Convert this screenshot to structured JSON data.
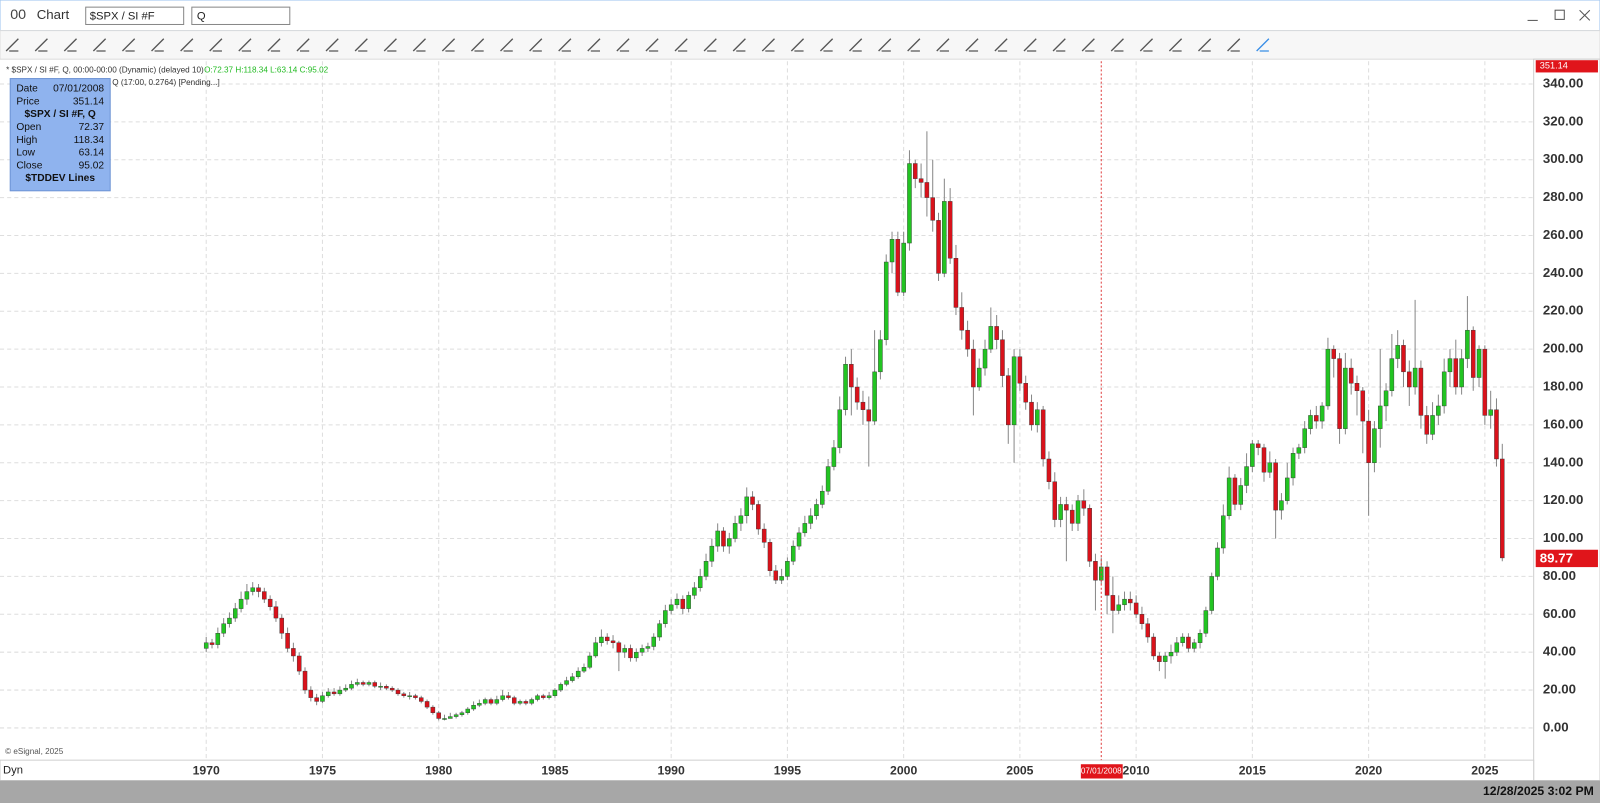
{
  "window": {
    "title": "Chart",
    "symbol": "$SPX / SI #F",
    "search": "Q"
  },
  "chart_data": {
    "type": "candlestick",
    "legend_line": "* $SPX / SI #F, Q, 00:00-00:00 (Dynamic) (delayed 10)",
    "ohlc_line": "O:72.37 H:118.34 L:63.14 C:95.02",
    "study_line": "Q (17:00, 0.2764) [Pending...]",
    "up_color": "#22c422",
    "down_color": "#d9121b",
    "grid": true,
    "x": [
      1970,
      1970.25,
      1970.5,
      1970.75,
      1971,
      1971.25,
      1971.5,
      1971.75,
      1972,
      1972.25,
      1972.5,
      1972.75,
      1973,
      1973.25,
      1973.5,
      1973.75,
      1974,
      1974.25,
      1974.5,
      1974.75,
      1975,
      1975.25,
      1975.5,
      1975.75,
      1976,
      1976.25,
      1976.5,
      1976.75,
      1977,
      1977.25,
      1977.5,
      1977.75,
      1978,
      1978.25,
      1978.5,
      1978.75,
      1979,
      1979.25,
      1979.5,
      1979.75,
      1980,
      1980.25,
      1980.5,
      1980.75,
      1981,
      1981.25,
      1981.5,
      1981.75,
      1982,
      1982.25,
      1982.5,
      1982.75,
      1983,
      1983.25,
      1983.5,
      1983.75,
      1984,
      1984.25,
      1984.5,
      1984.75,
      1985,
      1985.25,
      1985.5,
      1985.75,
      1986,
      1986.25,
      1986.5,
      1986.75,
      1987,
      1987.25,
      1987.5,
      1987.75,
      1988,
      1988.25,
      1988.5,
      1988.75,
      1989,
      1989.25,
      1989.5,
      1989.75,
      1990,
      1990.25,
      1990.5,
      1990.75,
      1991,
      1991.25,
      1991.5,
      1991.75,
      1992,
      1992.25,
      1992.5,
      1992.75,
      1993,
      1993.25,
      1993.5,
      1993.75,
      1994,
      1994.25,
      1994.5,
      1994.75,
      1995,
      1995.25,
      1995.5,
      1995.75,
      1996,
      1996.25,
      1996.5,
      1996.75,
      1997,
      1997.25,
      1997.5,
      1997.75,
      1998,
      1998.25,
      1998.5,
      1998.75,
      1999,
      1999.25,
      1999.5,
      1999.75,
      2000,
      2000.25,
      2000.5,
      2000.75,
      2001,
      2001.25,
      2001.5,
      2001.75,
      2002,
      2002.25,
      2002.5,
      2002.75,
      2003,
      2003.25,
      2003.5,
      2003.75,
      2004,
      2004.25,
      2004.5,
      2004.75,
      2005,
      2005.25,
      2005.5,
      2005.75,
      2006,
      2006.25,
      2006.5,
      2006.75,
      2007,
      2007.25,
      2007.5,
      2007.75,
      2008,
      2008.25,
      2008.5,
      2008.75,
      2009,
      2009.25,
      2009.5,
      2009.75,
      2010,
      2010.25,
      2010.5,
      2010.75,
      2011,
      2011.25,
      2011.5,
      2011.75,
      2012,
      2012.25,
      2012.5,
      2012.75,
      2013,
      2013.25,
      2013.5,
      2013.75,
      2014,
      2014.25,
      2014.5,
      2014.75,
      2015,
      2015.25,
      2015.5,
      2015.75,
      2016,
      2016.25,
      2016.5,
      2016.75,
      2017,
      2017.25,
      2017.5,
      2017.75,
      2018,
      2018.25,
      2018.5,
      2018.75,
      2019,
      2019.25,
      2019.5,
      2019.75,
      2020,
      2020.25,
      2020.5,
      2020.75,
      2021,
      2021.25,
      2021.5,
      2021.75,
      2022,
      2022.25,
      2022.5,
      2022.75,
      2023,
      2023.25,
      2023.5,
      2023.75,
      2024,
      2024.25,
      2024.5,
      2024.75,
      2025,
      2025.25,
      2025.5,
      2025.75
    ],
    "open": [
      42,
      45,
      44,
      50,
      55,
      58,
      63,
      68,
      72,
      74,
      72,
      68,
      64,
      58,
      50,
      42,
      38,
      30,
      20,
      16,
      14,
      17,
      19,
      18,
      20,
      21,
      23,
      24,
      23,
      24,
      22,
      22,
      21,
      20,
      18,
      17,
      17,
      16,
      14,
      11,
      8,
      5,
      5,
      6,
      7,
      8,
      10,
      12,
      13,
      15,
      13,
      15,
      17,
      16,
      13,
      14,
      13,
      15,
      17,
      16,
      17,
      20,
      23,
      25,
      27,
      30,
      32,
      38,
      45,
      48,
      46,
      45,
      40,
      42,
      37,
      40,
      42,
      43,
      48,
      55,
      62,
      65,
      68,
      63,
      70,
      74,
      80,
      88,
      96,
      104,
      96,
      100,
      108,
      112,
      122,
      118,
      105,
      98,
      83,
      78,
      80,
      88,
      96,
      103,
      108,
      112,
      118,
      125,
      138,
      148,
      168,
      192,
      180,
      172,
      168,
      162,
      188,
      205,
      246,
      258,
      230,
      256,
      298,
      290,
      288,
      280,
      268,
      240,
      278,
      248,
      222,
      210,
      200,
      180,
      190,
      200,
      212,
      205,
      186,
      160,
      196,
      182,
      172,
      160,
      168,
      142,
      130,
      110,
      118,
      115,
      108,
      120,
      116,
      88,
      78,
      85,
      70,
      62,
      65,
      68,
      66,
      60,
      55,
      48,
      38,
      35,
      38,
      40,
      45,
      48,
      42,
      45,
      50,
      62,
      80,
      95,
      112,
      132,
      118,
      128,
      138,
      150,
      148,
      135,
      140,
      115,
      120,
      132,
      145,
      148,
      158,
      165,
      162,
      170,
      200,
      195,
      158,
      190,
      182,
      178,
      162,
      140,
      158,
      170,
      178,
      195,
      202,
      188,
      180,
      190,
      165,
      155,
      165,
      170,
      188,
      195,
      180,
      195,
      210,
      185,
      200,
      165,
      168,
      142
    ],
    "high": [
      48,
      47,
      53,
      58,
      61,
      66,
      72,
      76,
      77,
      76,
      74,
      70,
      67,
      60,
      53,
      45,
      40,
      32,
      22,
      18,
      19,
      21,
      21,
      22,
      23,
      25,
      26,
      25,
      25,
      25,
      24,
      23,
      22,
      21,
      19,
      19,
      18,
      17,
      15,
      12,
      9,
      7,
      8,
      8,
      9,
      11,
      14,
      15,
      16,
      16,
      17,
      20,
      19,
      17,
      15,
      15,
      16,
      18,
      18,
      19,
      21,
      24,
      27,
      29,
      32,
      34,
      40,
      48,
      52,
      50,
      49,
      46,
      44,
      44,
      42,
      44,
      45,
      50,
      57,
      65,
      68,
      71,
      70,
      72,
      77,
      84,
      92,
      100,
      108,
      106,
      103,
      112,
      116,
      127,
      125,
      120,
      108,
      100,
      86,
      84,
      90,
      99,
      106,
      112,
      116,
      121,
      128,
      142,
      152,
      175,
      196,
      200,
      185,
      178,
      175,
      210,
      210,
      250,
      262,
      262,
      262,
      305,
      300,
      298,
      315,
      300,
      272,
      290,
      285,
      255,
      230,
      215,
      205,
      195,
      205,
      222,
      218,
      210,
      190,
      200,
      200,
      186,
      176,
      172,
      170,
      146,
      135,
      122,
      122,
      118,
      123,
      126,
      118,
      92,
      90,
      88,
      80,
      70,
      72,
      72,
      70,
      64,
      58,
      50,
      40,
      40,
      44,
      48,
      50,
      50,
      47,
      52,
      64,
      82,
      98,
      118,
      138,
      134,
      132,
      145,
      152,
      152,
      150,
      146,
      142,
      124,
      140,
      148,
      150,
      162,
      168,
      170,
      172,
      206,
      202,
      198,
      198,
      195,
      186,
      180,
      168,
      162,
      200,
      182,
      208,
      210,
      205,
      194,
      226,
      194,
      170,
      172,
      176,
      195,
      200,
      205,
      200,
      228,
      212,
      202,
      202,
      178,
      174,
      150
    ],
    "low": [
      40,
      42,
      42,
      48,
      53,
      56,
      61,
      65,
      70,
      69,
      66,
      62,
      56,
      47,
      40,
      35,
      28,
      18,
      14,
      12,
      13,
      16,
      17,
      17,
      19,
      20,
      22,
      22,
      22,
      21,
      20,
      20,
      19,
      17,
      16,
      15,
      15,
      13,
      10,
      7,
      4,
      4,
      5,
      5,
      6,
      7,
      9,
      11,
      12,
      12,
      12,
      14,
      15,
      12,
      12,
      12,
      12,
      14,
      15,
      15,
      16,
      19,
      22,
      24,
      26,
      29,
      31,
      37,
      43,
      44,
      42,
      30,
      37,
      35,
      35,
      38,
      40,
      41,
      46,
      53,
      60,
      63,
      60,
      61,
      68,
      72,
      78,
      85,
      93,
      93,
      92,
      98,
      104,
      108,
      115,
      102,
      95,
      80,
      76,
      76,
      78,
      86,
      94,
      101,
      105,
      110,
      116,
      123,
      136,
      145,
      165,
      165,
      168,
      160,
      138,
      160,
      184,
      202,
      240,
      228,
      228,
      252,
      285,
      280,
      270,
      262,
      236,
      238,
      245,
      218,
      205,
      196,
      165,
      178,
      186,
      198,
      200,
      180,
      150,
      140,
      178,
      168,
      157,
      156,
      138,
      126,
      106,
      106,
      88,
      104,
      104,
      112,
      85,
      62,
      76,
      60,
      50,
      60,
      62,
      62,
      58,
      52,
      45,
      36,
      30,
      26,
      34,
      38,
      43,
      40,
      40,
      42,
      48,
      60,
      78,
      92,
      110,
      115,
      115,
      124,
      135,
      144,
      130,
      132,
      100,
      110,
      118,
      128,
      142,
      145,
      155,
      158,
      158,
      168,
      185,
      150,
      155,
      176,
      165,
      145,
      112,
      135,
      148,
      162,
      175,
      190,
      180,
      170,
      176,
      158,
      150,
      152,
      160,
      166,
      180,
      176,
      176,
      190,
      178,
      180,
      160,
      158,
      138,
      88
    ],
    "close": [
      45,
      44,
      50,
      55,
      58,
      63,
      68,
      72,
      74,
      72,
      68,
      64,
      58,
      50,
      42,
      38,
      30,
      20,
      16,
      14,
      17,
      19,
      18,
      20,
      21,
      23,
      24,
      23,
      24,
      22,
      22,
      21,
      20,
      18,
      17,
      17,
      16,
      14,
      11,
      8,
      5,
      5,
      6,
      7,
      8,
      10,
      12,
      13,
      15,
      13,
      15,
      17,
      16,
      13,
      14,
      13,
      15,
      17,
      16,
      17,
      20,
      23,
      25,
      27,
      30,
      32,
      38,
      45,
      48,
      46,
      45,
      40,
      42,
      37,
      40,
      42,
      43,
      48,
      55,
      62,
      65,
      68,
      63,
      70,
      74,
      80,
      88,
      96,
      104,
      96,
      100,
      108,
      112,
      122,
      118,
      105,
      98,
      83,
      78,
      80,
      88,
      96,
      103,
      108,
      112,
      118,
      125,
      138,
      148,
      168,
      192,
      180,
      172,
      168,
      162,
      188,
      205,
      246,
      258,
      230,
      256,
      298,
      290,
      288,
      280,
      268,
      240,
      278,
      248,
      222,
      210,
      200,
      180,
      190,
      200,
      212,
      205,
      186,
      160,
      196,
      182,
      172,
      160,
      168,
      142,
      130,
      110,
      118,
      115,
      108,
      120,
      116,
      88,
      78,
      85,
      70,
      62,
      65,
      68,
      66,
      60,
      55,
      48,
      38,
      35,
      38,
      40,
      45,
      48,
      42,
      45,
      50,
      62,
      80,
      95,
      112,
      132,
      118,
      128,
      138,
      150,
      148,
      135,
      140,
      115,
      120,
      132,
      145,
      148,
      158,
      165,
      162,
      170,
      200,
      195,
      158,
      190,
      182,
      178,
      162,
      140,
      158,
      170,
      178,
      195,
      202,
      188,
      180,
      190,
      165,
      155,
      165,
      170,
      188,
      195,
      180,
      195,
      210,
      185,
      200,
      165,
      168,
      142,
      89.77
    ],
    "xlim": [
      1961.13,
      2027.1
    ],
    "xticks": [
      1970,
      1975,
      1980,
      1985,
      1990,
      1995,
      2000,
      2005,
      2010,
      2015,
      2020,
      2025
    ],
    "ylim": [
      -17,
      352
    ],
    "yticks": [
      {
        "value": 0,
        "label": "0.00"
      },
      {
        "value": 20,
        "label": "20.00"
      },
      {
        "value": 40,
        "label": "40.00"
      },
      {
        "value": 60,
        "label": "60.00"
      },
      {
        "value": 80,
        "label": "80.00"
      },
      {
        "value": 100,
        "label": "100.00"
      },
      {
        "value": 120,
        "label": "120.00"
      },
      {
        "value": 140,
        "label": "140.00"
      },
      {
        "value": 160,
        "label": "160.00"
      },
      {
        "value": 180,
        "label": "180.00"
      },
      {
        "value": 200,
        "label": "200.00"
      },
      {
        "value": 220,
        "label": "220.00"
      },
      {
        "value": 240,
        "label": "240.00"
      },
      {
        "value": 260,
        "label": "260.00"
      },
      {
        "value": 280,
        "label": "280.00"
      },
      {
        "value": 300,
        "label": "300.00"
      },
      {
        "value": 320,
        "label": "320.00"
      },
      {
        "value": 340,
        "label": "340.00"
      }
    ],
    "crosshair": {
      "x": 2008.5,
      "date_label": "07/01/2008",
      "price": 351.14
    },
    "tooltip": {
      "date": "Date",
      "price": "Price",
      "symbol": "$SPX / SI #F, Q",
      "rows": [
        {
          "label": "Open",
          "value": 72.37
        },
        {
          "label": "High",
          "value": 118.34
        },
        {
          "label": "Low",
          "value": 63.14
        },
        {
          "label": "Close",
          "value": 95.02
        }
      ],
      "study": "$TDDEV Lines"
    }
  },
  "footer": {
    "copyright": "© eSignal, 2025",
    "mode": "Dyn",
    "timestamp": "12/28/2025 3:02 PM"
  }
}
